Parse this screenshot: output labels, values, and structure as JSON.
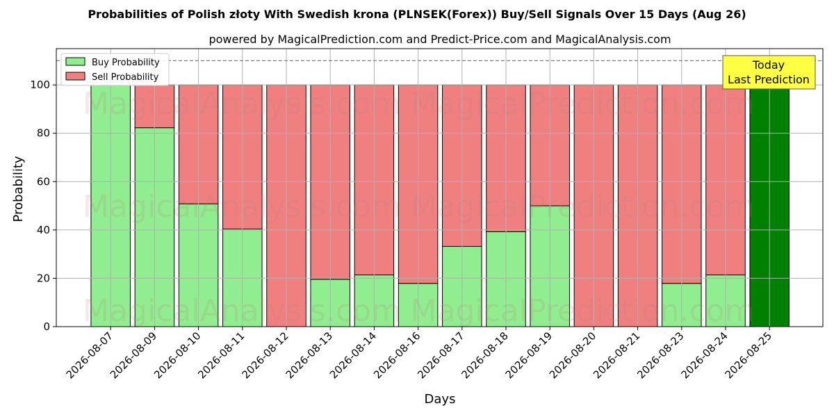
{
  "chart_data": {
    "type": "bar",
    "stacked": true,
    "title": "Probabilities of Polish złoty With Swedish krona (PLNSEK(Forex)) Buy/Sell Signals Over 15 Days (Aug 26)",
    "subtitle": "powered by MagicalPrediction.com and Predict-Price.com and MagicalAnalysis.com",
    "xlabel": "Days",
    "ylabel": "Probability",
    "ylim": [
      0,
      115
    ],
    "yticks": [
      0,
      20,
      40,
      60,
      80,
      100
    ],
    "threshold_line": 110,
    "grid": true,
    "legend_position": "top-left",
    "categories": [
      "2026-08-07",
      "2026-08-09",
      "2026-08-10",
      "2026-08-11",
      "2026-08-12",
      "2026-08-13",
      "2026-08-14",
      "2026-08-16",
      "2026-08-17",
      "2026-08-18",
      "2026-08-19",
      "2026-08-20",
      "2026-08-21",
      "2026-08-23",
      "2026-08-24",
      "2026-08-25"
    ],
    "series": [
      {
        "name": "Buy Probability",
        "color": "#90ee90",
        "values": [
          100,
          82.3,
          50.8,
          40.4,
          0,
          19.6,
          21.4,
          17.9,
          33.2,
          39.3,
          50,
          0,
          0,
          17.9,
          21.4,
          100
        ]
      },
      {
        "name": "Sell Probability",
        "color": "#f08080",
        "values": [
          0,
          17.7,
          49.2,
          59.6,
          100,
          80.4,
          78.6,
          82.1,
          66.8,
          60.7,
          50,
          100,
          100,
          82.1,
          78.6,
          0
        ]
      }
    ],
    "highlight": {
      "index": 15,
      "color": "#008000",
      "label_line1": "Today",
      "label_line2": "Last Prediction"
    },
    "watermark": [
      "MagicalAnalysis.com",
      "MagicalPrediction.com"
    ]
  }
}
